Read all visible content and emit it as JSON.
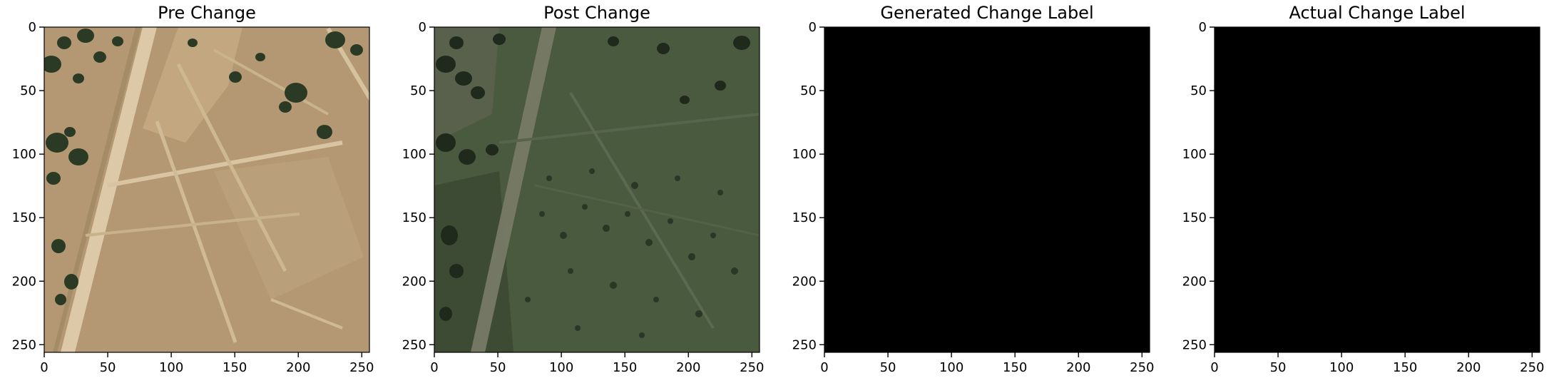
{
  "figure": {
    "panels": [
      {
        "title": "Pre Change",
        "kind": "satellite-image",
        "scene": "pre",
        "description_tag": "dry-field-aerial"
      },
      {
        "title": "Post Change",
        "kind": "satellite-image",
        "scene": "post",
        "description_tag": "green-field-aerial"
      },
      {
        "title": "Generated Change Label",
        "kind": "label-mask",
        "fill_color": "#000000"
      },
      {
        "title": "Actual Change Label",
        "kind": "label-mask",
        "fill_color": "#000000"
      }
    ],
    "axes": {
      "x_ticks": [
        0,
        50,
        100,
        150,
        200,
        250
      ],
      "y_ticks": [
        0,
        50,
        100,
        150,
        200,
        250
      ],
      "range": [
        0,
        256
      ]
    },
    "colors": {
      "pre_ground": "#b39873",
      "pre_track": "#d2bd98",
      "pre_tree": "#2b3a25",
      "post_ground": "#4a5a3f",
      "post_shade": "#3c4a35",
      "post_track": "#7a7c68",
      "post_tree": "#1f2a1c",
      "mask": "#000000"
    }
  }
}
